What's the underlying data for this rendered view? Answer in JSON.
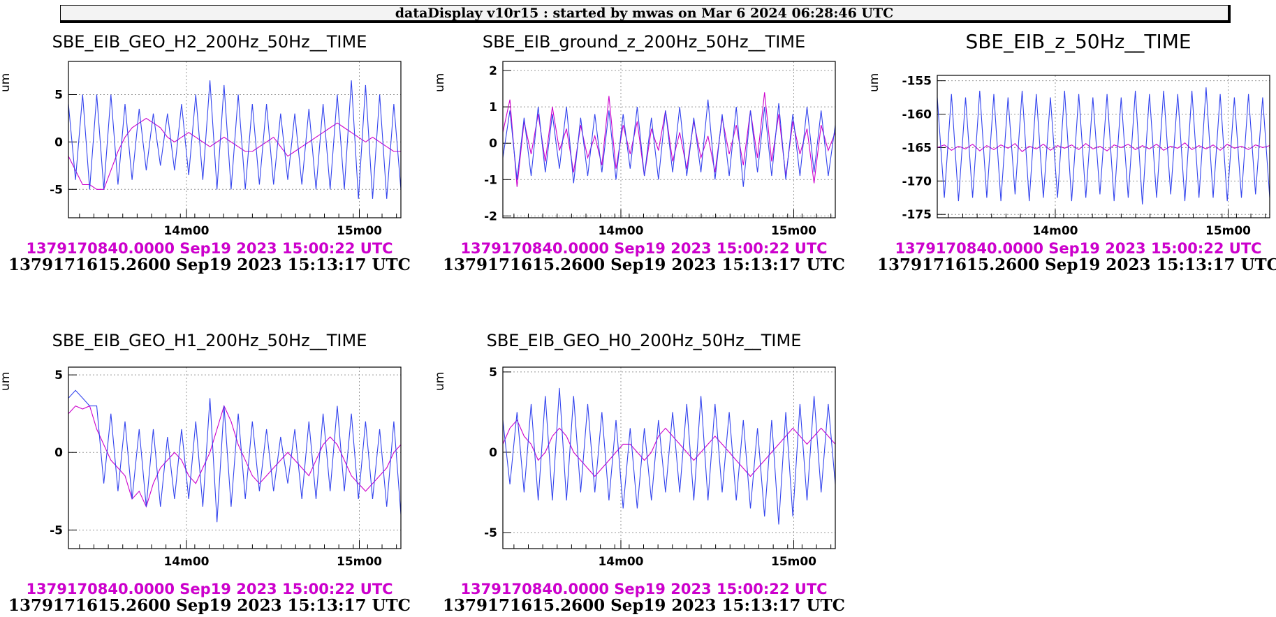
{
  "header": {
    "title": "dataDisplay v10r15 : started by mwas on Mar  6 2024 06:28:46 UTC"
  },
  "colors": {
    "series_a": "#cc00cc",
    "series_b": "#3344ee"
  },
  "chart_data": [
    {
      "type": "line",
      "title": "SBE_EIB_GEO_H2_200Hz_50Hz__TIME",
      "ylabel": "um",
      "ylim": [
        -8,
        8.5
      ],
      "yticks": [
        -5,
        0,
        5
      ],
      "xticks": [
        "14m00",
        "15m00"
      ],
      "series": [
        {
          "values": [
            -1.5,
            -3,
            -4.5,
            -4.5,
            -5,
            -5,
            -3,
            -1,
            0.5,
            1.5,
            2,
            2.5,
            2,
            1.5,
            0.5,
            0,
            0.5,
            1,
            0.5,
            0,
            -0.5,
            0,
            0.5,
            0,
            -0.5,
            -1,
            -1,
            -0.5,
            0,
            0.5,
            -0.5,
            -1.5,
            -1,
            -0.5,
            0,
            0.5,
            1,
            1.5,
            2,
            1.5,
            1,
            0.5,
            0,
            0.5,
            0,
            -0.5,
            -1,
            -1
          ]
        },
        {
          "values": [
            4,
            -4,
            5,
            -5,
            5,
            -5,
            5,
            -4.5,
            4,
            -4,
            3.5,
            -3,
            3,
            -2.5,
            3,
            -3,
            4,
            -3.5,
            5,
            -4,
            6.5,
            -5,
            6,
            -5,
            5,
            -5,
            4,
            -4.5,
            4,
            -4.5,
            3,
            -4,
            3,
            -4.5,
            3.5,
            -5,
            4,
            -5,
            5,
            -5,
            6.5,
            -6,
            6,
            -6,
            5,
            -6,
            4,
            -5
          ]
        }
      ],
      "timestamps": [
        "1379170840.0000 Sep19 2023 15:00:22 UTC",
        "1379171615.2600 Sep19 2023 15:13:17 UTC"
      ]
    },
    {
      "type": "line",
      "title": "SBE_EIB_ground_z_200Hz_50Hz__TIME",
      "ylabel": "um",
      "ylim": [
        -2.05,
        2.25
      ],
      "yticks": [
        -2,
        -1,
        0,
        1,
        2
      ],
      "xticks": [
        "14m00",
        "15m00"
      ],
      "series": [
        {
          "values": [
            0.3,
            1.2,
            -1.2,
            0.6,
            -0.3,
            0.8,
            -0.5,
            1,
            -0.2,
            0.4,
            -0.8,
            0.5,
            -0.4,
            0.2,
            -0.6,
            1.3,
            -0.7,
            0.5,
            -0.3,
            0.6,
            -0.9,
            0.4,
            -0.2,
            0.9,
            -0.5,
            0.3,
            -0.7,
            0.6,
            -0.4,
            0.2,
            -0.8,
            0.7,
            -0.3,
            0.5,
            -0.6,
            0.9,
            -0.4,
            1.4,
            -0.5,
            0.8,
            -0.9,
            0.6,
            -0.3,
            0.4,
            -1.1,
            0.5,
            -0.2,
            0.3
          ]
        },
        {
          "values": [
            -0.4,
            0.9,
            -1,
            0.7,
            -0.9,
            1,
            -0.8,
            0.8,
            -0.7,
            1,
            -1.1,
            0.7,
            -0.9,
            0.8,
            -0.8,
            0.9,
            -1,
            0.8,
            -0.7,
            1,
            -0.9,
            0.7,
            -1,
            0.9,
            -0.8,
            1,
            -0.9,
            0.7,
            -0.8,
            1.2,
            -1,
            0.8,
            -0.9,
            1,
            -1.2,
            0.9,
            -0.8,
            1,
            -0.9,
            1.1,
            -1,
            0.8,
            -0.9,
            1,
            -0.8,
            0.9,
            -0.9,
            0.5
          ]
        }
      ],
      "timestamps": [
        "1379170840.0000 Sep19 2023 15:00:22 UTC",
        "1379171615.2600 Sep19 2023 15:13:17 UTC"
      ]
    },
    {
      "type": "line",
      "title": "SBE_EIB_z_50Hz__TIME",
      "ylabel": "um",
      "ylim": [
        -175.5,
        -154.2
      ],
      "yticks": [
        -175,
        -170,
        -165,
        -160,
        -155
      ],
      "xticks": [
        "14m00",
        "15m00"
      ],
      "series": [
        {
          "values": [
            -165,
            -164.6,
            -165.4,
            -164.8,
            -165.2,
            -164.5,
            -165.5,
            -164.7,
            -165.3,
            -164.6,
            -165.1,
            -164.4,
            -165.6,
            -164.8,
            -165.2,
            -164.5,
            -165.4,
            -164.7,
            -165.1,
            -164.6,
            -165.3,
            -164.4,
            -165.2,
            -164.8,
            -165.5,
            -164.6,
            -165,
            -164.5,
            -165.3,
            -164.7,
            -165.2,
            -164.5,
            -165.4,
            -164.8,
            -165.1,
            -164.3,
            -165.3,
            -164.7,
            -165.2,
            -164.6,
            -165.4,
            -164.5,
            -165.1,
            -164.8,
            -165.3,
            -164.6,
            -165,
            -164.7
          ]
        },
        {
          "values": [
            -157.5,
            -172.5,
            -157,
            -173,
            -157.5,
            -172.5,
            -156.5,
            -172.5,
            -157,
            -173,
            -157.5,
            -172,
            -156.5,
            -173,
            -157,
            -172.5,
            -157.5,
            -172.5,
            -156.5,
            -173,
            -157,
            -172.5,
            -157.5,
            -172,
            -157,
            -173,
            -157.5,
            -172.5,
            -156.5,
            -173.5,
            -157,
            -172.5,
            -156.5,
            -172,
            -157,
            -173,
            -156.5,
            -172.5,
            -156,
            -172.5,
            -157,
            -173,
            -157.5,
            -172.5,
            -157,
            -172,
            -157.5,
            -172.5
          ]
        }
      ],
      "timestamps": [
        "1379170840.0000 Sep19 2023 15:00:22 UTC",
        "1379171615.2600 Sep19 2023 15:13:17 UTC"
      ]
    },
    {
      "type": "line",
      "title": "SBE_EIB_GEO_H1_200Hz_50Hz__TIME",
      "ylabel": "um",
      "ylim": [
        -6.2,
        5.5
      ],
      "yticks": [
        -5,
        0,
        5
      ],
      "xticks": [
        "14m00",
        "15m00"
      ],
      "series": [
        {
          "values": [
            2.5,
            3,
            2.8,
            3,
            1.5,
            0.5,
            -0.5,
            -1,
            -1.5,
            -3,
            -2.5,
            -3.5,
            -2,
            -1,
            -0.5,
            0,
            -0.5,
            -1.5,
            -2,
            -1,
            0,
            1.5,
            3,
            2,
            0.5,
            -0.5,
            -1.5,
            -2,
            -1.5,
            -1,
            -0.5,
            0,
            -0.5,
            -1,
            -1.5,
            -0.5,
            0.5,
            1,
            0.5,
            -0.5,
            -1.5,
            -2,
            -2.5,
            -2,
            -1.5,
            -1,
            0,
            0.5
          ]
        },
        {
          "values": [
            3.5,
            4,
            3.5,
            3,
            3,
            -2,
            2.5,
            -2.5,
            2,
            -3,
            1.5,
            -3.5,
            1.5,
            -3.5,
            1,
            -3,
            1.5,
            -3,
            2,
            -3.5,
            3.5,
            -4.5,
            3,
            -3.5,
            2.5,
            -3,
            2,
            -2.5,
            1.5,
            -2.5,
            1,
            -2,
            1.5,
            -3,
            2,
            -3,
            2.5,
            -2.5,
            3,
            -2.5,
            2.5,
            -3,
            2,
            -3,
            1.5,
            -3.5,
            2,
            -4
          ]
        }
      ],
      "timestamps": [
        "1379170840.0000 Sep19 2023 15:00:22 UTC",
        "1379171615.2600 Sep19 2023 15:13:17 UTC"
      ]
    },
    {
      "type": "line",
      "title": "SBE_EIB_GEO_H0_200Hz_50Hz__TIME",
      "ylabel": "um",
      "ylim": [
        -6,
        5.3
      ],
      "yticks": [
        -5,
        0,
        5
      ],
      "xticks": [
        "14m00",
        "15m00"
      ],
      "series": [
        {
          "values": [
            0.5,
            1.5,
            2,
            1,
            0.5,
            -0.5,
            0,
            1,
            1.5,
            1,
            0,
            -0.5,
            -1,
            -1.5,
            -1,
            -0.5,
            0,
            0.5,
            0.5,
            0,
            -0.5,
            0,
            1,
            1.5,
            1,
            0.5,
            0,
            -0.5,
            0,
            0.5,
            1,
            0.5,
            0,
            -0.5,
            -1,
            -1.5,
            -1,
            -0.5,
            0,
            0.5,
            1,
            1.5,
            1,
            0.5,
            1,
            1.5,
            1,
            0.5
          ]
        },
        {
          "values": [
            2,
            -2,
            2.5,
            -2.5,
            3,
            -3,
            3.5,
            -3,
            4,
            -3,
            3.5,
            -2.5,
            3,
            -2.5,
            2.5,
            -3,
            2,
            -3.5,
            1.5,
            -3.5,
            1.5,
            -3,
            2,
            -2.5,
            2.5,
            -2.5,
            3,
            -3,
            3.5,
            -3,
            3,
            -2.5,
            2.5,
            -3,
            2,
            -3.5,
            1.5,
            -4,
            2,
            -4.5,
            2.5,
            -4,
            3,
            -3,
            3.5,
            -2.5,
            3,
            -2
          ]
        }
      ],
      "timestamps": [
        "1379170840.0000 Sep19 2023 15:00:22 UTC",
        "1379171615.2600 Sep19 2023 15:13:17 UTC"
      ]
    }
  ]
}
